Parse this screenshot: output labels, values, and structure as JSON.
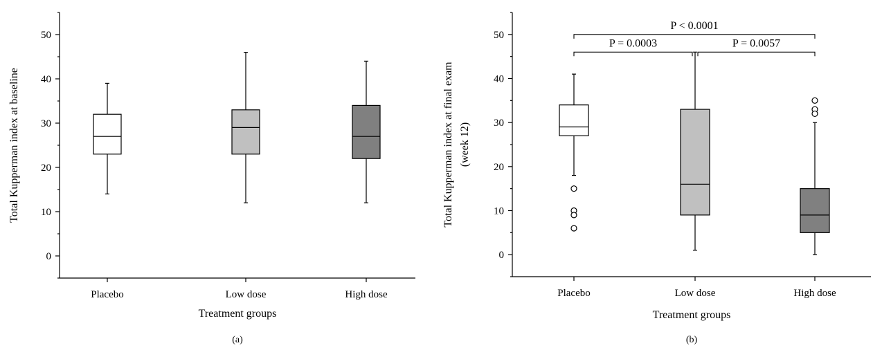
{
  "colors": {
    "placebo": "#ffffff",
    "low_dose": "#c0c0c0",
    "high_dose": "#808080"
  },
  "chart_data": [
    {
      "panel_label": "(a)",
      "type": "boxplot",
      "xlabel": "Treatment groups",
      "ylabel": "Total Kupperman index at baseline",
      "ylim": [
        -5,
        55
      ],
      "yticks": [
        0,
        10,
        20,
        30,
        40,
        50
      ],
      "categories": [
        "Placebo",
        "Low dose",
        "High dose"
      ],
      "boxes": [
        {
          "name": "Placebo",
          "min": 14,
          "q1": 23,
          "median": 27,
          "q3": 32,
          "max": 39,
          "outliers": [],
          "fill": "#ffffff"
        },
        {
          "name": "Low dose",
          "min": 12,
          "q1": 23,
          "median": 29,
          "q3": 33,
          "max": 46,
          "outliers": [],
          "fill": "#c0c0c0"
        },
        {
          "name": "High dose",
          "min": 12,
          "q1": 22,
          "median": 27,
          "q3": 34,
          "max": 44,
          "outliers": [],
          "fill": "#808080"
        }
      ],
      "annotations": []
    },
    {
      "panel_label": "(b)",
      "type": "boxplot",
      "xlabel": "Treatment groups",
      "ylabel": "Total Kupperman index at final exam",
      "ylabel2": "(week 12)",
      "ylim": [
        -5,
        55
      ],
      "yticks": [
        0,
        10,
        20,
        30,
        40,
        50
      ],
      "categories": [
        "Placebo",
        "Low dose",
        "High dose"
      ],
      "boxes": [
        {
          "name": "Placebo",
          "min": 18,
          "q1": 27,
          "median": 29,
          "q3": 34,
          "max": 41,
          "outliers": [
            15,
            10,
            9,
            6
          ],
          "fill": "#ffffff"
        },
        {
          "name": "Low dose",
          "min": 1,
          "q1": 9,
          "median": 16,
          "q3": 33,
          "max": 46,
          "outliers": [],
          "fill": "#c0c0c0"
        },
        {
          "name": "High dose",
          "min": 0,
          "q1": 5,
          "median": 9,
          "q3": 15,
          "max": 30,
          "outliers": [
            35,
            33,
            32
          ],
          "fill": "#808080"
        }
      ],
      "annotations": [
        {
          "from": 0,
          "to": 2,
          "y": 50,
          "label": "P < 0.0001"
        },
        {
          "from": 0,
          "to": 1,
          "y": 46,
          "label": "P = 0.0003"
        },
        {
          "from": 1,
          "to": 2,
          "y": 46,
          "label": "P = 0.0057"
        }
      ]
    }
  ]
}
